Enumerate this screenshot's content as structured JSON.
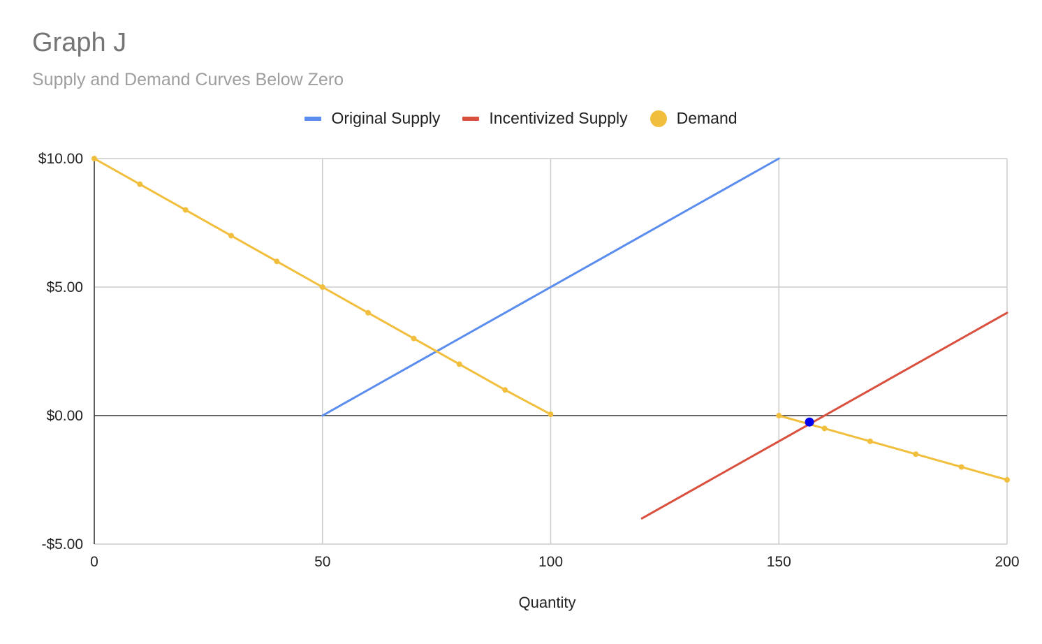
{
  "chart_data": {
    "type": "line",
    "title": "Graph J",
    "subtitle": "Supply and Demand Curves Below Zero",
    "xlabel": "Quantity",
    "ylabel": "",
    "xlim": [
      0,
      200
    ],
    "ylim": [
      -5,
      10
    ],
    "x_ticks": [
      0,
      50,
      100,
      150,
      200
    ],
    "x_tick_labels": [
      "0",
      "50",
      "100",
      "150",
      "200"
    ],
    "y_ticks": [
      10,
      5,
      0,
      -5
    ],
    "y_tick_labels": [
      "$10.00",
      "$5.00",
      "$0.00",
      "-$5.00"
    ],
    "grid": true,
    "legend_position": "top",
    "series": [
      {
        "name": "Original Supply",
        "color": "#5b8def",
        "markers": false,
        "points": [
          [
            50,
            0
          ],
          [
            150,
            10
          ]
        ]
      },
      {
        "name": "Incentivized Supply",
        "color": "#d9503f",
        "markers": false,
        "points": [
          [
            120,
            -4
          ],
          [
            150,
            -1
          ],
          [
            200,
            4
          ]
        ]
      },
      {
        "name": "Demand",
        "color": "#f1bf3d",
        "markers": true,
        "segments": [
          [
            [
              0,
              10
            ],
            [
              10,
              9
            ],
            [
              20,
              8
            ],
            [
              30,
              7
            ],
            [
              40,
              6
            ],
            [
              50,
              5
            ],
            [
              60,
              4
            ],
            [
              70,
              3
            ],
            [
              80,
              2
            ],
            [
              90,
              1
            ],
            [
              100,
              0.05
            ]
          ],
          [
            [
              150,
              0
            ],
            [
              160,
              -0.5
            ],
            [
              170,
              -1
            ],
            [
              180,
              -1.5
            ],
            [
              190,
              -2
            ],
            [
              200,
              -2.5
            ]
          ]
        ]
      }
    ],
    "highlight_point": {
      "x": 156.7,
      "y": -0.25,
      "color": "#0000ee"
    }
  }
}
